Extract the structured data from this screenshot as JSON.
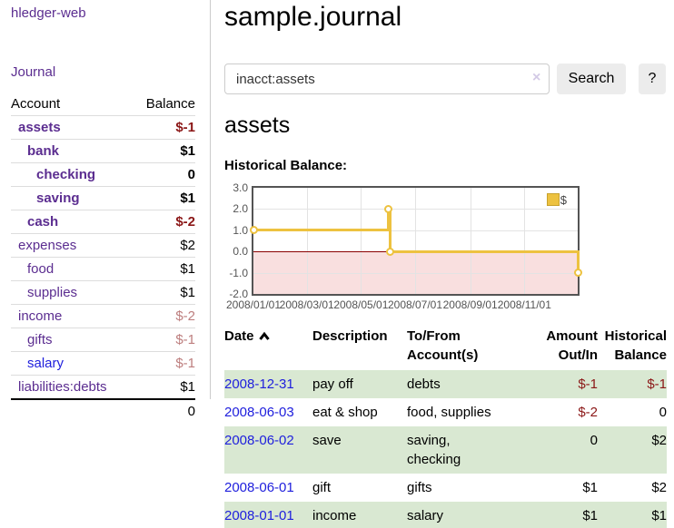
{
  "app": {
    "title": "hledger-web"
  },
  "sidebar": {
    "nav": {
      "journal_label": "Journal"
    },
    "accounts_table": {
      "headers": {
        "account": "Account",
        "balance": "Balance"
      },
      "rows": [
        {
          "account": "assets",
          "balance": "$-1",
          "depth": 0,
          "selected": true,
          "balance_status": "negative"
        },
        {
          "account": "bank",
          "balance": "$1",
          "depth": 1,
          "selected": true,
          "balance_status": "normal"
        },
        {
          "account": "checking",
          "balance": "0",
          "depth": 2,
          "selected": true,
          "balance_status": "normal"
        },
        {
          "account": "saving",
          "balance": "$1",
          "depth": 2,
          "selected": true,
          "balance_status": "normal"
        },
        {
          "account": "cash",
          "balance": "$-2",
          "depth": 1,
          "selected": true,
          "balance_status": "negative"
        },
        {
          "account": "expenses",
          "balance": "$2",
          "depth": 0,
          "selected": false,
          "balance_status": "normal"
        },
        {
          "account": "food",
          "balance": "$1",
          "depth": 1,
          "selected": false,
          "balance_status": "normal"
        },
        {
          "account": "supplies",
          "balance": "$1",
          "depth": 1,
          "selected": false,
          "balance_status": "normal"
        },
        {
          "account": "income",
          "balance": "$-2",
          "depth": 0,
          "selected": false,
          "balance_status": "negative-muted"
        },
        {
          "account": "gifts",
          "balance": "$-1",
          "depth": 1,
          "selected": false,
          "balance_status": "negative-muted"
        },
        {
          "account": "salary",
          "balance": "$-1",
          "depth": 1,
          "selected": false,
          "balance_status": "negative-muted"
        },
        {
          "account": "liabilities:debts",
          "balance": "$1",
          "depth": 0,
          "selected": false,
          "balance_status": "normal"
        }
      ],
      "total": "0"
    }
  },
  "header": {
    "title": "sample.journal"
  },
  "search": {
    "value": "inacct:assets",
    "clear_icon": "×",
    "button_label": "Search",
    "help_label": "?"
  },
  "account_page": {
    "heading": "assets"
  },
  "chart_data": {
    "type": "line",
    "title": "Historical Balance:",
    "step": true,
    "xmax": 365,
    "ylim": [
      -2,
      3
    ],
    "grid": true,
    "legend": {
      "label": "$",
      "position": "top-right"
    },
    "yticks": [
      {
        "v": 3,
        "label": "3.0"
      },
      {
        "v": 2,
        "label": "2.0"
      },
      {
        "v": 1,
        "label": "1.0"
      },
      {
        "v": 0,
        "label": "0.0"
      },
      {
        "v": -1,
        "label": "-1.0"
      },
      {
        "v": -2,
        "label": "-2.0"
      }
    ],
    "xticks": [
      {
        "day": 0,
        "label": "2008/01/01"
      },
      {
        "day": 60,
        "label": "2008/03/01"
      },
      {
        "day": 121,
        "label": "2008/05/01"
      },
      {
        "day": 182,
        "label": "2008/07/01"
      },
      {
        "day": 244,
        "label": "2008/09/01"
      },
      {
        "day": 305,
        "label": "2008/11/01"
      }
    ],
    "series": [
      {
        "name": "$",
        "color": "#edc240",
        "points": [
          {
            "date": "2008-01-01",
            "day": 0,
            "value": 1
          },
          {
            "date": "2008-06-01",
            "day": 152,
            "value": 2
          },
          {
            "date": "2008-06-03",
            "day": 154,
            "value": 0
          },
          {
            "date": "2008-12-31",
            "day": 365,
            "value": -1
          }
        ]
      }
    ],
    "zero_line_color": "#8b0000",
    "negative_region_color": "#f9dfdf",
    "border_color": "#545454",
    "tick_color": "#545454"
  },
  "register": {
    "headers": [
      {
        "label": "Date",
        "sort": "ascending"
      },
      {
        "label": "Description"
      },
      {
        "label": "To/From Account(s)"
      },
      {
        "label": "Amount Out/In"
      },
      {
        "label": "Historical Balance"
      }
    ],
    "rows": [
      {
        "date": "2008-12-31",
        "description": "pay off",
        "accounts": "debts",
        "amount": "$-1",
        "balance": "$-1"
      },
      {
        "date": "2008-06-03",
        "description": "eat & shop",
        "accounts": "food, supplies",
        "amount": "$-2",
        "balance": "0"
      },
      {
        "date": "2008-06-02",
        "description": "save",
        "accounts": "saving,\nchecking",
        "amount": "0",
        "balance": "$2"
      },
      {
        "date": "2008-06-01",
        "description": "gift",
        "accounts": "gifts",
        "amount": "$1",
        "balance": "$2"
      },
      {
        "date": "2008-01-01",
        "description": "income",
        "accounts": "salary",
        "amount": "$1",
        "balance": "$1"
      }
    ]
  },
  "colors": {
    "link_purple": "#5b2d90",
    "link_blue": "#2020dd",
    "negative": "#8b1717",
    "negative_muted": "#bd7e7e",
    "row_stripe_green": "#d9e8d2",
    "chart_gold": "#edc240",
    "chart_negative_fill": "#f9dfdf",
    "chart_zero_line": "#8b0000"
  }
}
